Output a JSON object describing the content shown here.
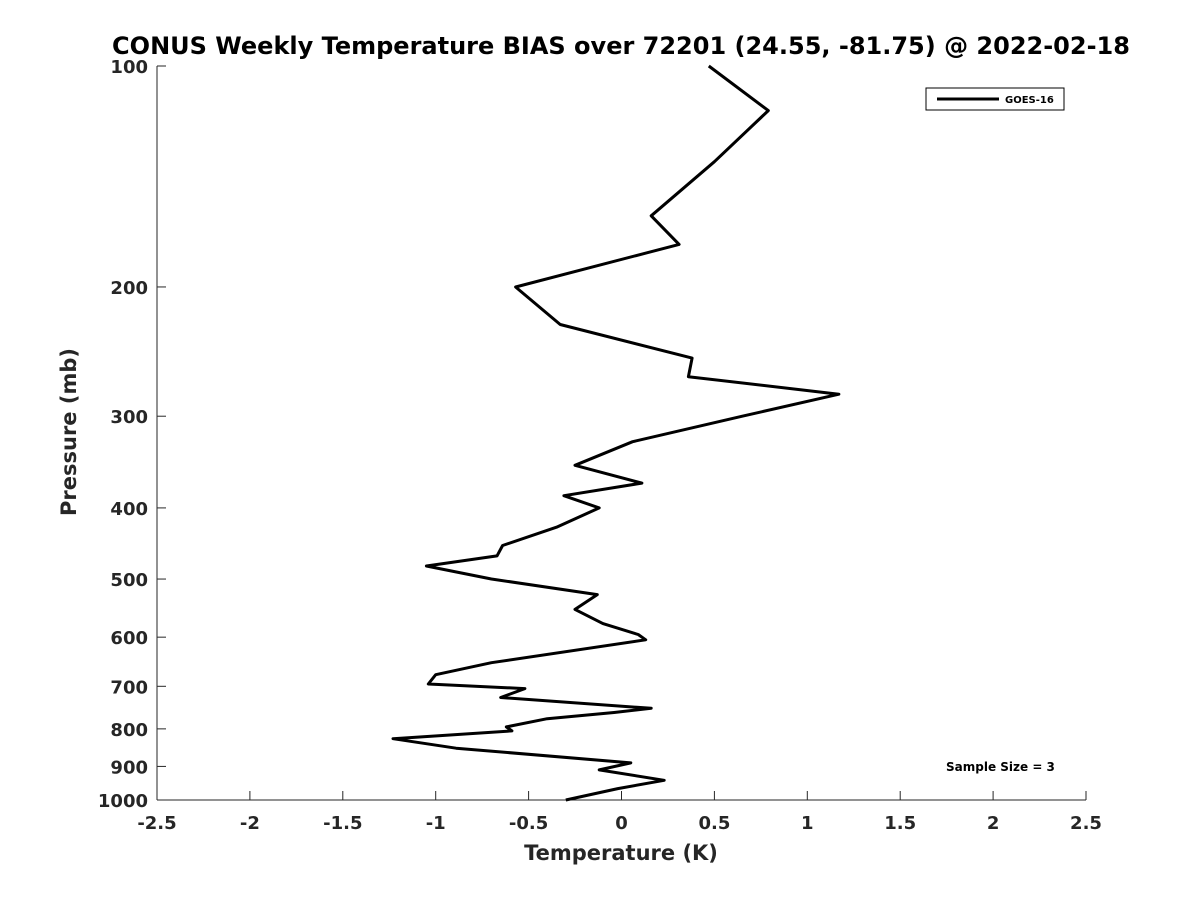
{
  "chart_data": {
    "type": "line",
    "title": "CONUS Weekly Temperature BIAS over 72201 (24.55, -81.75) @ 2022-02-18",
    "xlabel": "Temperature (K)",
    "ylabel": "Pressure (mb)",
    "xlim": [
      -2.5,
      2.5
    ],
    "ylim": [
      100,
      1000
    ],
    "y_scale": "log",
    "y_reversed": true,
    "x_ticks": [
      "-2.5",
      "-2",
      "-1.5",
      "-1",
      "-0.5",
      "0",
      "0.5",
      "1",
      "1.5",
      "2",
      "2.5"
    ],
    "y_ticks": [
      "100",
      "200",
      "300",
      "400",
      "500",
      "600",
      "700",
      "800",
      "900",
      "1000"
    ],
    "grid": false,
    "legend_position": "top-right",
    "series": [
      {
        "name": "GOES-16",
        "color": "#000000",
        "points": [
          {
            "x": 0.47,
            "y": 100
          },
          {
            "x": 0.79,
            "y": 115
          },
          {
            "x": 0.5,
            "y": 135
          },
          {
            "x": 0.16,
            "y": 160
          },
          {
            "x": 0.31,
            "y": 175
          },
          {
            "x": -0.57,
            "y": 200
          },
          {
            "x": -0.33,
            "y": 225
          },
          {
            "x": 0.38,
            "y": 250
          },
          {
            "x": 0.36,
            "y": 265
          },
          {
            "x": 1.17,
            "y": 280
          },
          {
            "x": 0.65,
            "y": 300
          },
          {
            "x": 0.06,
            "y": 325
          },
          {
            "x": -0.25,
            "y": 350
          },
          {
            "x": 0.11,
            "y": 370
          },
          {
            "x": -0.31,
            "y": 385
          },
          {
            "x": -0.12,
            "y": 400
          },
          {
            "x": -0.35,
            "y": 425
          },
          {
            "x": -0.64,
            "y": 450
          },
          {
            "x": -0.67,
            "y": 465
          },
          {
            "x": -1.05,
            "y": 480
          },
          {
            "x": -0.7,
            "y": 500
          },
          {
            "x": -0.13,
            "y": 525
          },
          {
            "x": -0.25,
            "y": 550
          },
          {
            "x": -0.1,
            "y": 575
          },
          {
            "x": 0.09,
            "y": 595
          },
          {
            "x": 0.13,
            "y": 605
          },
          {
            "x": -0.7,
            "y": 650
          },
          {
            "x": -1.0,
            "y": 675
          },
          {
            "x": -1.04,
            "y": 695
          },
          {
            "x": -0.52,
            "y": 705
          },
          {
            "x": -0.65,
            "y": 725
          },
          {
            "x": 0.16,
            "y": 750
          },
          {
            "x": -0.04,
            "y": 760
          },
          {
            "x": -0.4,
            "y": 775
          },
          {
            "x": -0.62,
            "y": 795
          },
          {
            "x": -0.59,
            "y": 805
          },
          {
            "x": -1.23,
            "y": 825
          },
          {
            "x": -0.89,
            "y": 850
          },
          {
            "x": 0.05,
            "y": 890
          },
          {
            "x": -0.12,
            "y": 910
          },
          {
            "x": 0.23,
            "y": 940
          },
          {
            "x": -0.02,
            "y": 965
          },
          {
            "x": -0.3,
            "y": 1000
          }
        ]
      }
    ],
    "annotations": [
      "Sample Size = 3"
    ]
  }
}
